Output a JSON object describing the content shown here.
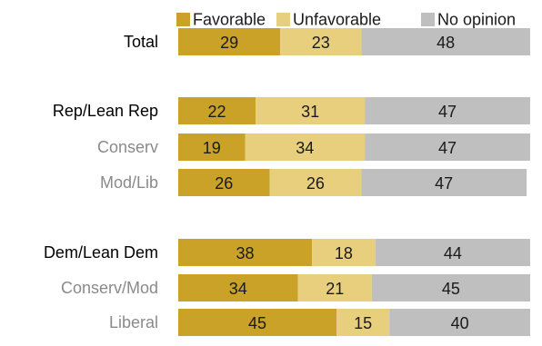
{
  "chart_data": {
    "type": "bar",
    "orientation": "horizontal",
    "stacked": true,
    "xlim": [
      0,
      100
    ],
    "grid": false,
    "legend_position": "top",
    "colors": [
      "#c9a227",
      "#e8cf7e",
      "#bfbfbf"
    ],
    "series": [
      {
        "name": "Favorable",
        "values": [
          29,
          22,
          19,
          26,
          38,
          34,
          45
        ]
      },
      {
        "name": "Unfavorable",
        "values": [
          23,
          31,
          34,
          26,
          18,
          21,
          15
        ]
      },
      {
        "name": "No opinion",
        "values": [
          48,
          47,
          47,
          47,
          44,
          45,
          40
        ]
      }
    ],
    "categories": [
      {
        "label": "Total",
        "level": "main",
        "group": 0
      },
      {
        "label": "Rep/Lean Rep",
        "level": "main",
        "group": 1
      },
      {
        "label": "Conserv",
        "level": "sub",
        "group": 1
      },
      {
        "label": "Mod/Lib",
        "level": "sub",
        "group": 1
      },
      {
        "label": "Dem/Lean Dem",
        "level": "main",
        "group": 2
      },
      {
        "label": "Conserv/Mod",
        "level": "sub",
        "group": 2
      },
      {
        "label": "Liberal",
        "level": "sub",
        "group": 2
      }
    ]
  }
}
